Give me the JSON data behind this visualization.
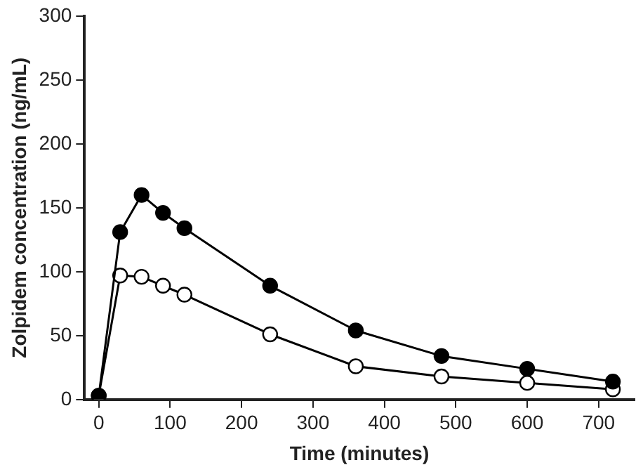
{
  "chart_data": {
    "type": "line",
    "xlabel": "Time (minutes)",
    "ylabel": "Zolpidem concentration (ng/mL)",
    "xlim": [
      -20,
      750
    ],
    "xticks": [
      0,
      100,
      200,
      300,
      400,
      500,
      600,
      700
    ],
    "ylim": [
      0,
      300
    ],
    "yticks": [
      0,
      50,
      100,
      150,
      200,
      250,
      300
    ],
    "grid": false,
    "legend": false,
    "marker": "circle",
    "line_style": "solid",
    "series": [
      {
        "color": "#000000",
        "x": [
          0,
          30,
          60,
          90,
          120,
          240,
          360,
          480,
          600,
          720
        ],
        "values": [
          3,
          131,
          160,
          146,
          134,
          89,
          54,
          34,
          24,
          14
        ]
      },
      {
        "color": "#000000",
        "x": [
          0,
          30,
          60,
          90,
          120,
          240,
          360,
          480,
          600,
          720
        ],
        "values": [
          3,
          97,
          96,
          89,
          82,
          51,
          26,
          18,
          13,
          8
        ]
      }
    ]
  }
}
